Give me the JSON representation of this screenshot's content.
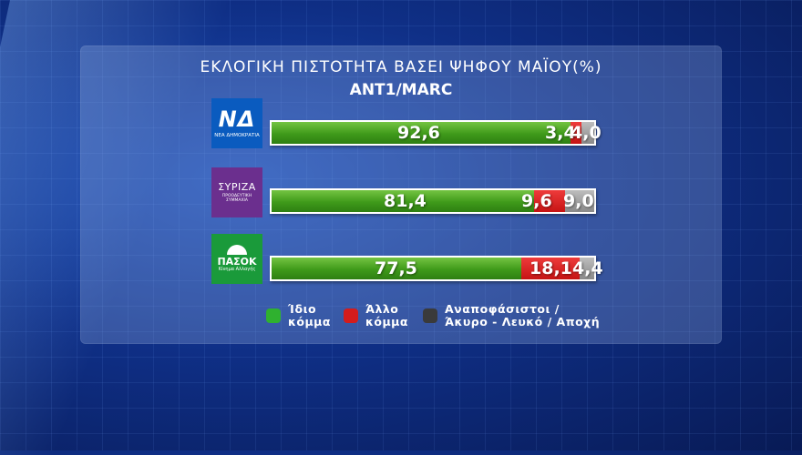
{
  "title": "ΕΚΛΟΓΙΚΗ ΠΙΣΤΟΤΗΤΑ ΒΑΣΕΙ ΨΗΦΟΥ ΜΑΪΟΥ(%)",
  "subtitle": "ANT1/MARC",
  "colors": {
    "same_party": "#3f9a1a",
    "other_party": "#c61414",
    "undecided": "#8a8a8a",
    "nd_logo": "#0a5bbf",
    "syriza_logo": "#6b2f8e",
    "pasok_logo": "#1a9a3a"
  },
  "logos": [
    {
      "mark": "ΝΔ",
      "sub": "ΝΕΑ ΔΗΜΟΚΡΑΤΙΑ"
    },
    {
      "mark": "ΣΥΡΙΖΑ",
      "sub": "ΠΡΟΟΔΕΥΤΙΚΗ ΣΥΜΜΑΧΙΑ"
    },
    {
      "mark": "ΠΑΣΟΚ",
      "sub": "Κίνημα Αλλαγής"
    }
  ],
  "legend": [
    {
      "line1": "Ίδιο",
      "line2": "κόμμα"
    },
    {
      "line1": "Άλλο",
      "line2": "κόμμα"
    },
    {
      "line1": "Αναποφάσιστοι /",
      "line2": "Άκυρο - Λευκό / Αποχή"
    }
  ],
  "chart_data": {
    "type": "bar",
    "stacked": true,
    "orientation": "horizontal",
    "title": "ΕΚΛΟΓΙΚΗ ΠΙΣΤΟΤΗΤΑ ΒΑΣΕΙ ΨΗΦΟΥ ΜΑΪΟΥ(%)",
    "subtitle": "ANT1/MARC",
    "categories": [
      "ΝΔ",
      "ΣΥΡΙΖΑ",
      "ΠΑΣΟΚ"
    ],
    "series": [
      {
        "name": "Ίδιο κόμμα",
        "values": [
          92.6,
          81.4,
          77.5
        ],
        "labels": [
          "92,6",
          "81,4",
          "77,5"
        ]
      },
      {
        "name": "Άλλο κόμμα",
        "values": [
          3.4,
          9.6,
          18.1
        ],
        "labels": [
          "3,4",
          "9,6",
          "18,1"
        ]
      },
      {
        "name": "Αναποφάσιστοι / Άκυρο - Λευκό / Αποχή",
        "values": [
          4.0,
          9.0,
          4.4
        ],
        "labels": [
          "4,0",
          "9,0",
          "4,4"
        ]
      }
    ],
    "xlim": [
      0,
      100
    ],
    "grid": false,
    "legend_position": "bottom"
  }
}
